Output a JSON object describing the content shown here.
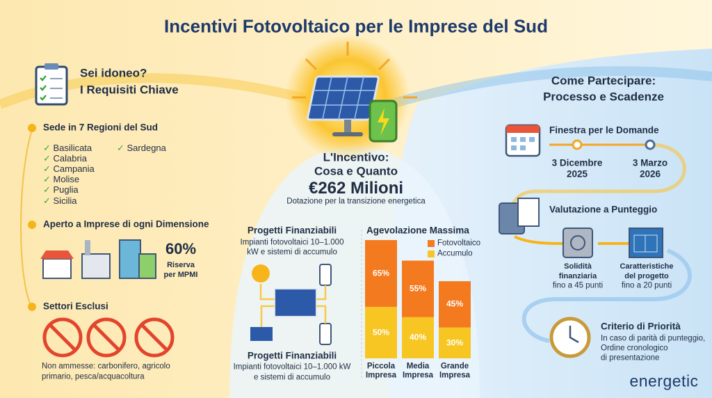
{
  "title": "Incentivi Fotovoltaico per le Imprese del Sud",
  "requirements": {
    "title_lines": [
      "Sei idoneo?",
      "I Requisiti Chiave"
    ],
    "regions": {
      "heading": "Sede in 7 Regioni del Sud",
      "items": [
        "Basilicata",
        "Calabria",
        "Campania",
        "Molise",
        "Puglia",
        "Sicilia",
        "Sardegna"
      ]
    },
    "size": {
      "heading": "Aperto a Imprese di ogni Dimensione",
      "stat": "60%",
      "stat_label_lines": [
        "Riserva",
        "per MPMI"
      ]
    },
    "excluded": {
      "heading": "Settori Esclusi",
      "note_lines": [
        "Non ammesse: carbonifero, agricolo",
        "primario, pesca/acquacoltura"
      ]
    }
  },
  "incentive": {
    "title_lines": [
      "L'Incentivo:",
      "Cosa e Quanto"
    ],
    "amount": "€262 Milioni",
    "subtitle": "Dotazione per la transizione energetica"
  },
  "projects": {
    "top_title": "Progetti Finanziabili",
    "top_text_lines": [
      "Impianti fotovoltaici 10–1.000",
      "kW e sistemi di accumulo"
    ],
    "bottom_title": "Progetti Finanziabili",
    "bottom_text_lines": [
      "Impianti fotovoltaici 10–1.000 kW",
      "e sistemi di accumulo"
    ]
  },
  "chart_data": {
    "type": "bar",
    "stacked": true,
    "title": "Agevolazione Massima",
    "categories": [
      "Piccola Impresa",
      "Media Impresa",
      "Grande Impresa"
    ],
    "series": [
      {
        "name": "Fotovoltaico",
        "color": "#f47a1f",
        "values": [
          65,
          55,
          45
        ],
        "value_labels": [
          "65%",
          "55%",
          "45%"
        ]
      },
      {
        "name": "Accumulo",
        "color": "#f8c622",
        "values": [
          50,
          40,
          30
        ],
        "value_labels": [
          "50%",
          "40%",
          "30%"
        ]
      }
    ]
  },
  "process": {
    "title_lines": [
      "Come Partecipare:",
      "Processo e Scadenze"
    ],
    "window": {
      "heading": "Finestra per le Domande",
      "start": [
        "3 Dicembre",
        "2025"
      ],
      "end": [
        "3 Marzo",
        "2026"
      ]
    },
    "scoring": {
      "heading": "Valutazione a Punteggio",
      "criteria": [
        {
          "lines": [
            "Solidità",
            "finanziaria",
            "fino a 45 punti"
          ]
        },
        {
          "lines": [
            "Caratteristiche",
            "del progetto",
            "fino a 20 punti"
          ]
        }
      ]
    },
    "priority": {
      "heading": "Criterio di Priorità",
      "lines": [
        "In caso di parità di punteggio,",
        "Ordine cronologico",
        "di presentazione"
      ]
    }
  },
  "brand": "energetic"
}
